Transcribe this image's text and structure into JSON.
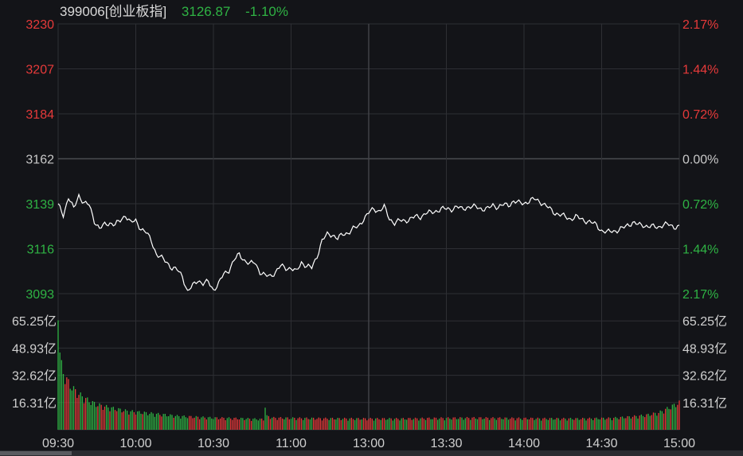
{
  "header": {
    "code": "399006[创业板指]",
    "price": "3126.87",
    "change": "-1.10%"
  },
  "colors": {
    "up": "#e63a3a",
    "down": "#2fb344",
    "neutral": "#c8c8c8",
    "line": "#ffffff",
    "grid": "#2e2f34"
  },
  "chart_data": {
    "type": "line",
    "price_ticks": [
      {
        "label": "3230",
        "value": 3230,
        "dir": "up"
      },
      {
        "label": "3207",
        "value": 3207,
        "dir": "up"
      },
      {
        "label": "3184",
        "value": 3184,
        "dir": "up"
      },
      {
        "label": "3162",
        "value": 3162,
        "dir": "neutral"
      },
      {
        "label": "3139",
        "value": 3139,
        "dir": "down"
      },
      {
        "label": "3116",
        "value": 3116,
        "dir": "down"
      },
      {
        "label": "3093",
        "value": 3093,
        "dir": "down"
      }
    ],
    "pct_ticks": [
      {
        "label": "2.17%",
        "dir": "up"
      },
      {
        "label": "1.44%",
        "dir": "up"
      },
      {
        "label": "0.72%",
        "dir": "up"
      },
      {
        "label": "0.00%",
        "dir": "neutral"
      },
      {
        "label": "0.72%",
        "dir": "down"
      },
      {
        "label": "1.44%",
        "dir": "down"
      },
      {
        "label": "2.17%",
        "dir": "down"
      }
    ],
    "volume_ticks": [
      "65.25亿",
      "48.93亿",
      "32.62亿",
      "16.31亿"
    ],
    "volume_tick_values": [
      65.25,
      48.93,
      32.62,
      16.31
    ],
    "volume_max": 81.56,
    "time_labels": [
      "09:30",
      "10:00",
      "10:30",
      "11:00",
      "13:00",
      "13:30",
      "14:00",
      "14:30",
      "15:00"
    ],
    "ylim": [
      3093,
      3230
    ],
    "prev_close": 3162,
    "price_keypoints": [
      [
        0,
        3138
      ],
      [
        3,
        3133
      ],
      [
        6,
        3142
      ],
      [
        9,
        3136
      ],
      [
        12,
        3143
      ],
      [
        15,
        3139
      ],
      [
        18,
        3138
      ],
      [
        21,
        3130
      ],
      [
        24,
        3126
      ],
      [
        27,
        3128
      ],
      [
        30,
        3129
      ],
      [
        33,
        3128
      ],
      [
        36,
        3130
      ],
      [
        39,
        3133
      ],
      [
        42,
        3129
      ],
      [
        45,
        3130
      ],
      [
        48,
        3126
      ],
      [
        51,
        3124
      ],
      [
        54,
        3120
      ],
      [
        57,
        3113
      ],
      [
        60,
        3111
      ],
      [
        63,
        3109
      ],
      [
        66,
        3106
      ],
      [
        69,
        3105
      ],
      [
        72,
        3102
      ],
      [
        75,
        3094
      ],
      [
        78,
        3097
      ],
      [
        81,
        3100
      ],
      [
        84,
        3098
      ],
      [
        87,
        3099
      ],
      [
        90,
        3095
      ],
      [
        93,
        3098
      ],
      [
        96,
        3103
      ],
      [
        99,
        3105
      ],
      [
        102,
        3110
      ],
      [
        105,
        3113
      ],
      [
        108,
        3110
      ],
      [
        111,
        3108
      ],
      [
        114,
        3109
      ],
      [
        117,
        3104
      ],
      [
        120,
        3102
      ],
      [
        123,
        3102
      ],
      [
        126,
        3104
      ],
      [
        129,
        3107
      ],
      [
        132,
        3106
      ],
      [
        135,
        3106
      ],
      [
        138,
        3104
      ],
      [
        141,
        3109
      ],
      [
        144,
        3107
      ],
      [
        147,
        3106
      ],
      [
        150,
        3112
      ],
      [
        153,
        3120
      ],
      [
        156,
        3123
      ],
      [
        159,
        3123
      ],
      [
        162,
        3121
      ],
      [
        165,
        3123
      ],
      [
        168,
        3124
      ],
      [
        171,
        3126
      ],
      [
        174,
        3127
      ],
      [
        177,
        3131
      ],
      [
        180,
        3134
      ],
      [
        183,
        3136
      ],
      [
        186,
        3135
      ],
      [
        189,
        3137
      ],
      [
        192,
        3131
      ],
      [
        195,
        3129
      ],
      [
        198,
        3130
      ],
      [
        201,
        3130
      ],
      [
        204,
        3131
      ],
      [
        207,
        3132
      ],
      [
        210,
        3132
      ],
      [
        213,
        3134
      ],
      [
        216,
        3134
      ],
      [
        219,
        3135
      ],
      [
        222,
        3136
      ],
      [
        225,
        3136
      ],
      [
        228,
        3136
      ],
      [
        231,
        3137
      ],
      [
        234,
        3136
      ],
      [
        237,
        3137
      ],
      [
        240,
        3137
      ],
      [
        243,
        3137
      ],
      [
        246,
        3136
      ],
      [
        249,
        3136
      ],
      [
        252,
        3138
      ],
      [
        255,
        3137
      ],
      [
        258,
        3138
      ],
      [
        261,
        3138
      ],
      [
        264,
        3140
      ],
      [
        267,
        3139
      ],
      [
        270,
        3139
      ],
      [
        273,
        3140
      ],
      [
        276,
        3141
      ],
      [
        279,
        3140
      ],
      [
        282,
        3138
      ],
      [
        285,
        3136
      ],
      [
        288,
        3134
      ],
      [
        291,
        3133
      ],
      [
        294,
        3132
      ],
      [
        297,
        3131
      ],
      [
        300,
        3132
      ],
      [
        303,
        3131
      ],
      [
        306,
        3130
      ],
      [
        309,
        3129
      ],
      [
        312,
        3128
      ],
      [
        315,
        3125
      ],
      [
        318,
        3124
      ],
      [
        321,
        3125
      ],
      [
        324,
        3125
      ],
      [
        327,
        3126
      ],
      [
        330,
        3128
      ],
      [
        333,
        3129
      ],
      [
        336,
        3128
      ],
      [
        339,
        3128
      ],
      [
        342,
        3127
      ],
      [
        345,
        3127
      ],
      [
        348,
        3127
      ],
      [
        351,
        3128
      ],
      [
        354,
        3128
      ],
      [
        357,
        3127
      ],
      [
        360,
        3127
      ]
    ],
    "volume_keypoints": [
      [
        0,
        80
      ],
      [
        1,
        45
      ],
      [
        2,
        38
      ],
      [
        3,
        34
      ],
      [
        4,
        31
      ],
      [
        6,
        28
      ],
      [
        8,
        25
      ],
      [
        10,
        23
      ],
      [
        12,
        21
      ],
      [
        15,
        19
      ],
      [
        18,
        17
      ],
      [
        22,
        15
      ],
      [
        26,
        14
      ],
      [
        30,
        13
      ],
      [
        35,
        12
      ],
      [
        40,
        11
      ],
      [
        50,
        10
      ],
      [
        60,
        9
      ],
      [
        70,
        8
      ],
      [
        80,
        7.5
      ],
      [
        90,
        7
      ],
      [
        100,
        6.8
      ],
      [
        110,
        6.5
      ],
      [
        118,
        6.2
      ],
      [
        119,
        6
      ],
      [
        120,
        14
      ],
      [
        121,
        8
      ],
      [
        125,
        7
      ],
      [
        140,
        6.8
      ],
      [
        160,
        6.6
      ],
      [
        180,
        6.5
      ],
      [
        200,
        6.5
      ],
      [
        220,
        6.8
      ],
      [
        240,
        7
      ],
      [
        260,
        6.8
      ],
      [
        280,
        6.6
      ],
      [
        300,
        6.5
      ],
      [
        320,
        6.8
      ],
      [
        330,
        7.5
      ],
      [
        340,
        8.5
      ],
      [
        348,
        10
      ],
      [
        352,
        12
      ],
      [
        355,
        13.5
      ],
      [
        358,
        15
      ],
      [
        360,
        16
      ]
    ]
  }
}
